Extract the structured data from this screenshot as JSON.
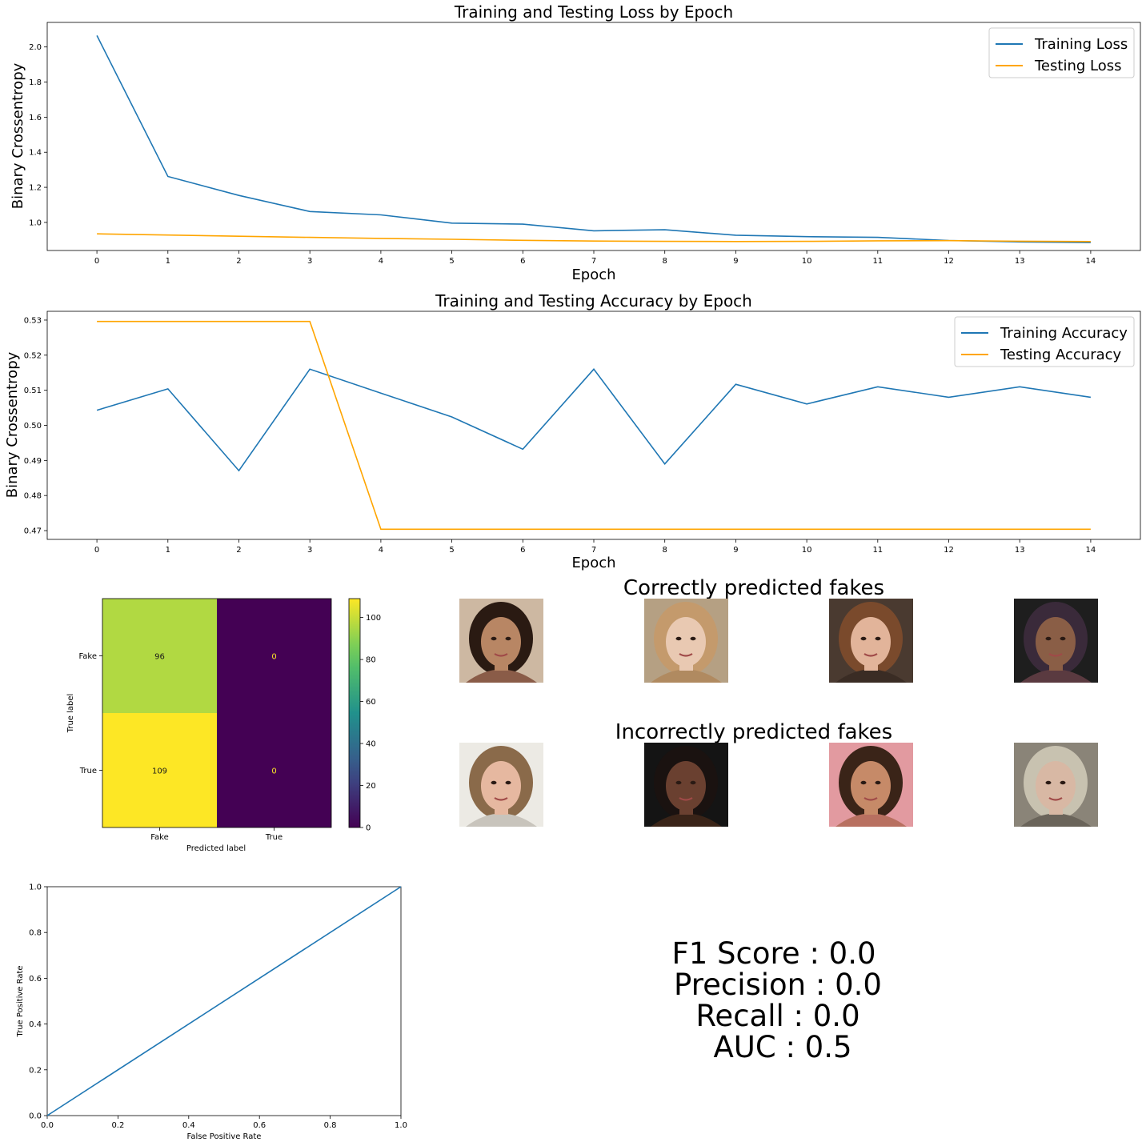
{
  "loss_chart": {
    "title": "Training and Testing Loss by Epoch",
    "xlabel": "Epoch",
    "ylabel": "Binary Crossentropy"
  },
  "accuracy_chart": {
    "title": "Training and Testing Accuracy by Epoch",
    "xlabel": "Epoch",
    "ylabel": "Binary Crossentropy"
  },
  "confusion_matrix": {
    "xlabel": "Predicted label",
    "ylabel": "True label"
  },
  "roc_chart": {
    "xlabel": "False Positive Rate",
    "ylabel": "True Positive Rate"
  },
  "image_grid": {
    "correct_title": "Correctly predicted fakes",
    "incorrect_title": "Incorrectly predicted fakes",
    "correct_images": [
      {
        "icon": "face-photo-1",
        "palette": {
          "bg": "#cdb8a2",
          "hair": "#2a1a12",
          "skin": "#b88664",
          "shirt": "#8a5c48"
        }
      },
      {
        "icon": "face-photo-2",
        "palette": {
          "bg": "#b5a083",
          "hair": "#c49a6c",
          "skin": "#e9c9b2",
          "shirt": "#b08a60"
        }
      },
      {
        "icon": "face-photo-3",
        "palette": {
          "bg": "#4a3a30",
          "hair": "#7a4a2c",
          "skin": "#e2b49a",
          "shirt": "#3a2c24"
        }
      },
      {
        "icon": "face-photo-4",
        "palette": {
          "bg": "#1e1e1e",
          "hair": "#3a2a3a",
          "skin": "#8a5e46",
          "shirt": "#5a3a40"
        }
      }
    ],
    "incorrect_images": [
      {
        "icon": "face-photo-5",
        "palette": {
          "bg": "#eceae4",
          "hair": "#8a6a4a",
          "skin": "#e6b8a0",
          "shirt": "#c8c4bc"
        }
      },
      {
        "icon": "face-photo-6",
        "palette": {
          "bg": "#141414",
          "hair": "#1a1210",
          "skin": "#6a4030",
          "shirt": "#3a2418"
        }
      },
      {
        "icon": "face-photo-7",
        "palette": {
          "bg": "#e29aa0",
          "hair": "#3a2418",
          "skin": "#c68a68",
          "shirt": "#b87060"
        }
      },
      {
        "icon": "face-photo-8",
        "palette": {
          "bg": "#8a8478",
          "hair": "#c8c2b0",
          "skin": "#d8b8a4",
          "shirt": "#6a645a"
        }
      }
    ]
  },
  "metrics": {
    "f1": "F1 Score : 0.0",
    "precision": "Precision : 0.0",
    "recall": "Recall : 0.0",
    "auc": "AUC : 0.5"
  },
  "colors": {
    "training": "#1f77b4",
    "testing": "#ffa500"
  },
  "chart_data": [
    {
      "type": "line",
      "title": "Training and Testing Loss by Epoch",
      "xlabel": "Epoch",
      "ylabel": "Binary Crossentropy",
      "x": [
        0,
        1,
        2,
        3,
        4,
        5,
        6,
        7,
        8,
        9,
        10,
        11,
        12,
        13,
        14
      ],
      "ylim": [
        0.84,
        2.14
      ],
      "yticks": [
        1.0,
        1.2,
        1.4,
        1.6,
        1.8,
        2.0
      ],
      "ytick_labels": [
        "1.0",
        "1.2",
        "1.4",
        "1.6",
        "1.8",
        "2.0"
      ],
      "legend": "top-right",
      "series": [
        {
          "name": "Training Loss",
          "color": "#1f77b4",
          "values": [
            2.065,
            1.262,
            1.154,
            1.062,
            1.043,
            0.996,
            0.99,
            0.952,
            0.958,
            0.927,
            0.919,
            0.915,
            0.897,
            0.889,
            0.885
          ]
        },
        {
          "name": "Testing Loss",
          "color": "#ffa500",
          "values": [
            0.935,
            0.928,
            0.921,
            0.915,
            0.909,
            0.904,
            0.898,
            0.894,
            0.892,
            0.891,
            0.892,
            0.895,
            0.896,
            0.893,
            0.891
          ]
        }
      ]
    },
    {
      "type": "line",
      "title": "Training and Testing Accuracy by Epoch",
      "xlabel": "Epoch",
      "ylabel": "Binary Crossentropy",
      "x": [
        0,
        1,
        2,
        3,
        4,
        5,
        6,
        7,
        8,
        9,
        10,
        11,
        12,
        13,
        14
      ],
      "ylim": [
        0.4675,
        0.5325
      ],
      "yticks": [
        0.47,
        0.48,
        0.49,
        0.5,
        0.51,
        0.52,
        0.53
      ],
      "ytick_labels": [
        "0.47",
        "0.48",
        "0.49",
        "0.50",
        "0.51",
        "0.52",
        "0.53"
      ],
      "legend": "top-right",
      "series": [
        {
          "name": "Training Accuracy",
          "color": "#1f77b4",
          "values": [
            0.5043,
            0.5104,
            0.4871,
            0.516,
            0.5092,
            0.5024,
            0.4932,
            0.516,
            0.489,
            0.5117,
            0.5061,
            0.511,
            0.508,
            0.511,
            0.508
          ]
        },
        {
          "name": "Testing Accuracy",
          "color": "#ffa500",
          "values": [
            0.5296,
            0.5296,
            0.5296,
            0.5296,
            0.4704,
            0.4704,
            0.4704,
            0.4704,
            0.4704,
            0.4704,
            0.4704,
            0.4704,
            0.4704,
            0.4704,
            0.4704
          ]
        }
      ]
    },
    {
      "type": "heatmap",
      "xlabel": "Predicted label",
      "ylabel": "True label",
      "x_categories": [
        "Fake",
        "True"
      ],
      "y_categories": [
        "Fake",
        "True"
      ],
      "values": [
        [
          96,
          0
        ],
        [
          109,
          0
        ]
      ],
      "colorbar_range": [
        0,
        109
      ],
      "colorbar_ticks": [
        0,
        20,
        40,
        60,
        80,
        100
      ],
      "colormap": "viridis"
    },
    {
      "type": "line",
      "xlabel": "False Positive Rate",
      "ylabel": "True Positive Rate",
      "xlim": [
        0,
        1
      ],
      "ylim": [
        0,
        1
      ],
      "xticks": [
        0.0,
        0.2,
        0.4,
        0.6,
        0.8,
        1.0
      ],
      "yticks": [
        0.0,
        0.2,
        0.4,
        0.6,
        0.8,
        1.0
      ],
      "series": [
        {
          "color": "#1f77b4",
          "x": [
            0,
            1
          ],
          "values": [
            0,
            1
          ]
        }
      ]
    }
  ]
}
